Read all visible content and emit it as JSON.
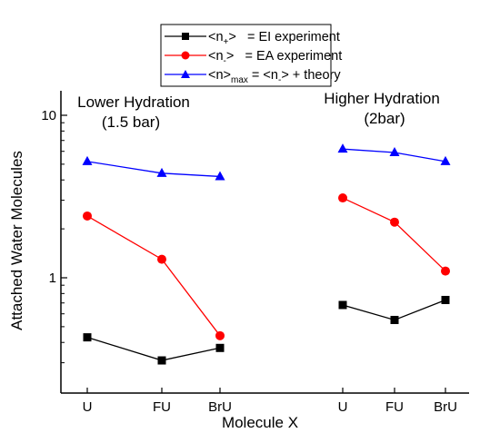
{
  "chart_data": {
    "type": "line",
    "xlabel": "Molecule X",
    "ylabel": "Attached Water Molecules",
    "yscale": "log",
    "ylim": [
      0.25,
      16
    ],
    "yticks": [
      {
        "value": 1,
        "label": "1"
      },
      {
        "value": 10,
        "label": "10"
      }
    ],
    "grid": false,
    "legend_position": "top-center",
    "groups": [
      {
        "label_line1": "Lower Hydration",
        "label_line2": "(1.5 bar)",
        "categories": [
          "U",
          "FU",
          "BrU"
        ]
      },
      {
        "label_line1": "Higher Hydration",
        "label_line2": "(2bar)",
        "categories": [
          "U",
          "FU",
          "BrU"
        ]
      }
    ],
    "series": [
      {
        "legend_main": "<n",
        "legend_sub": "+",
        "legend_rest": ">   = EI experiment",
        "color": "#000000",
        "marker": "square",
        "groups": [
          [
            0.43,
            0.31,
            0.37
          ],
          [
            0.68,
            0.55,
            0.73
          ]
        ]
      },
      {
        "legend_main": "<n",
        "legend_sub": "-",
        "legend_rest": ">   = EA experiment",
        "color": "#ff0000",
        "marker": "circle",
        "groups": [
          [
            2.4,
            1.3,
            0.44
          ],
          [
            3.1,
            2.2,
            1.1
          ]
        ]
      },
      {
        "legend_main": "<n>",
        "legend_sub": "max",
        "legend_rest": " = <n",
        "legend_sub2": "-",
        "legend_rest2": "> + theory",
        "color": "#0000ff",
        "marker": "triangle",
        "groups": [
          [
            5.2,
            4.4,
            4.2
          ],
          [
            6.2,
            5.9,
            5.2
          ]
        ]
      }
    ]
  }
}
